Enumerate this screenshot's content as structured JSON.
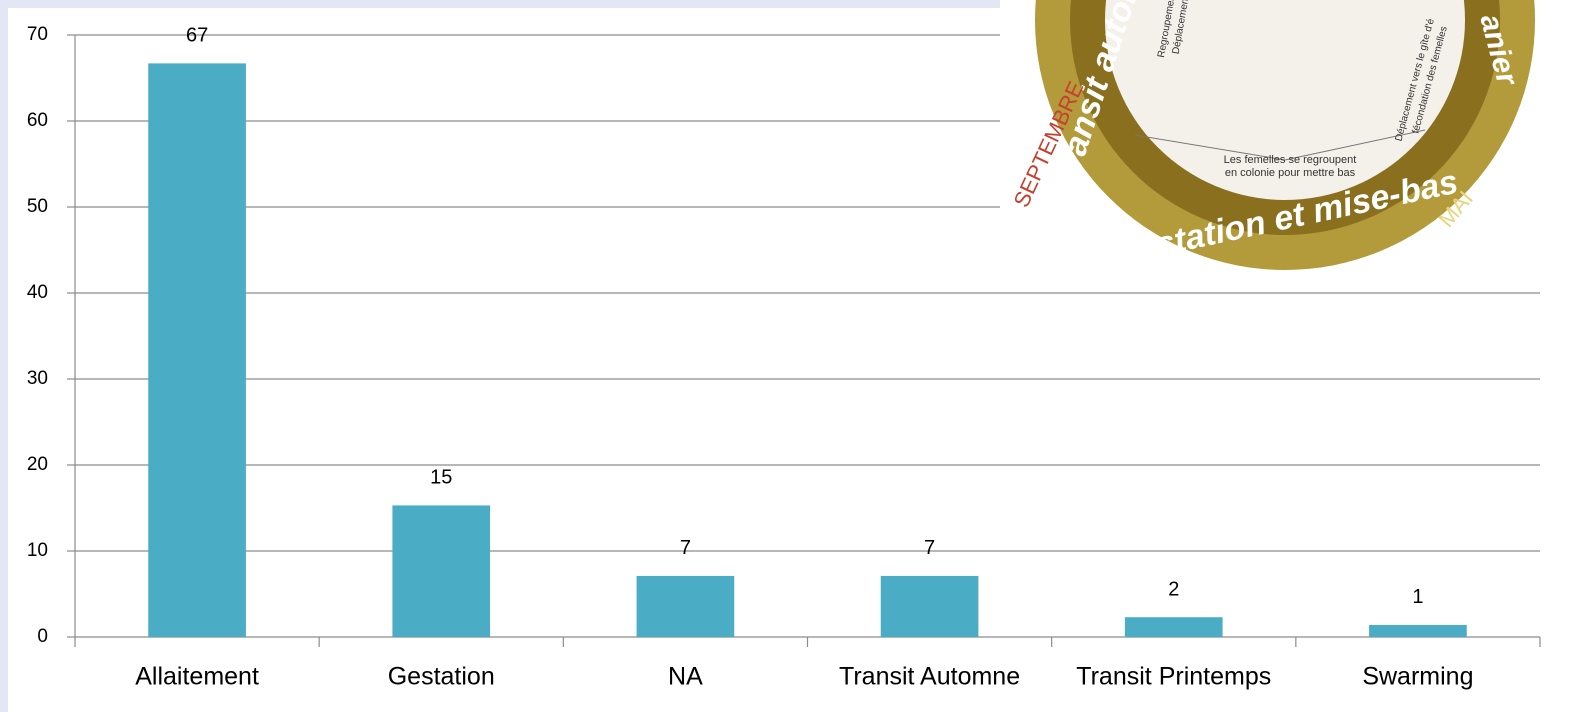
{
  "chart_data": {
    "type": "bar",
    "categories": [
      "Allaitement",
      "Gestation",
      "NA",
      "Transit Automne",
      "Transit Printemps",
      "Swarming"
    ],
    "values": [
      66.7,
      15.3,
      7.1,
      7.1,
      2.3,
      1.4
    ],
    "value_labels": [
      "67",
      "15",
      "7",
      "7",
      "2",
      "1"
    ],
    "color": "#4bacc6",
    "ylim": [
      0,
      70
    ],
    "yticks": [
      0,
      10,
      20,
      30,
      40,
      50,
      60,
      70
    ],
    "grid": true
  },
  "inset_image": {
    "texts": [
      "Gestation et mise-bas",
      "Transit autom",
      "anier",
      "SEPTEMBRE",
      "MAI",
      "Les femelles se regroupent",
      "en colonie pour mettre bas",
      "Regroupement",
      "Déplacement",
      "Déplacement vers le gîte d'é",
      "fécondation des femelles"
    ]
  }
}
